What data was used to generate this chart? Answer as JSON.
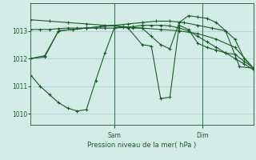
{
  "title": "",
  "xlabel": "Pression niveau de la mer( hPa )",
  "background_color": "#d4ece8",
  "grid_color": "#a8cccc",
  "line_color": "#1a5c28",
  "ylim": [
    1009.6,
    1014.0
  ],
  "yticks": [
    1010,
    1011,
    1012,
    1013
  ],
  "xlim": [
    0,
    48
  ],
  "sam_x": 18,
  "dim_x": 37,
  "series": [
    {
      "x": [
        0,
        2,
        4,
        6,
        8,
        10,
        12,
        14,
        16,
        18,
        20,
        22,
        24,
        26,
        28,
        30,
        32,
        34,
        36,
        38,
        40,
        42,
        44,
        46,
        48
      ],
      "y": [
        1013.05,
        1013.05,
        1013.05,
        1013.08,
        1013.1,
        1013.1,
        1013.1,
        1013.1,
        1013.1,
        1013.1,
        1013.12,
        1013.15,
        1013.2,
        1013.2,
        1013.2,
        1013.18,
        1013.1,
        1013.0,
        1012.8,
        1012.6,
        1012.4,
        1012.2,
        1012.0,
        1011.8,
        1011.6
      ]
    },
    {
      "x": [
        0,
        4,
        8,
        12,
        16,
        20,
        24,
        28,
        32,
        36,
        40,
        44,
        48
      ],
      "y": [
        1013.4,
        1013.35,
        1013.3,
        1013.25,
        1013.2,
        1013.15,
        1013.1,
        1013.05,
        1013.0,
        1012.9,
        1012.7,
        1012.4,
        1011.65
      ]
    },
    {
      "x": [
        0,
        3,
        6,
        9,
        12,
        15,
        18,
        21,
        24,
        27,
        30,
        33,
        36,
        39,
        42,
        45,
        48
      ],
      "y": [
        1012.0,
        1012.05,
        1013.0,
        1013.05,
        1013.1,
        1013.15,
        1013.2,
        1013.25,
        1013.3,
        1013.35,
        1013.35,
        1013.3,
        1013.2,
        1013.1,
        1013.0,
        1011.7,
        1011.65
      ]
    },
    {
      "x": [
        0,
        2,
        4,
        6,
        8,
        10,
        12,
        14,
        16,
        18,
        20,
        22,
        24,
        26,
        28,
        30,
        32,
        34,
        36,
        38,
        40,
        42,
        44,
        46,
        48
      ],
      "y": [
        1011.4,
        1011.0,
        1010.7,
        1010.4,
        1010.2,
        1010.1,
        1010.15,
        1011.2,
        1012.2,
        1013.1,
        1013.15,
        1013.1,
        1013.1,
        1012.8,
        1012.5,
        1012.35,
        1013.3,
        1013.55,
        1013.5,
        1013.45,
        1013.3,
        1013.0,
        1012.7,
        1012.0,
        1011.65
      ]
    },
    {
      "x": [
        0,
        3,
        6,
        9,
        12,
        15,
        18,
        21,
        24,
        26,
        28,
        30,
        32,
        34,
        36,
        38,
        40,
        42,
        44,
        46,
        48
      ],
      "y": [
        1012.0,
        1012.1,
        1013.0,
        1013.05,
        1013.1,
        1013.15,
        1013.2,
        1013.1,
        1012.5,
        1012.45,
        1010.55,
        1010.6,
        1013.2,
        1013.05,
        1012.55,
        1012.4,
        1012.3,
        1012.2,
        1012.15,
        1011.9,
        1011.65
      ]
    }
  ]
}
